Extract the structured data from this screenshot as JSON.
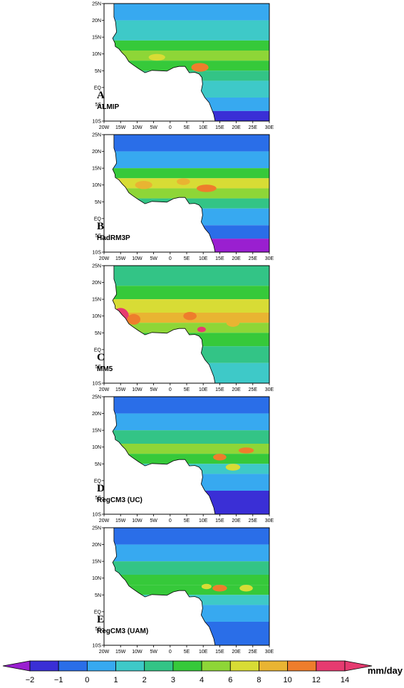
{
  "panels": [
    {
      "letter": "A",
      "name": "ALMIP"
    },
    {
      "letter": "B",
      "name": "HadRM3P"
    },
    {
      "letter": "C",
      "name": "MM5"
    },
    {
      "letter": "D",
      "name": "RegCM3 (UC)"
    },
    {
      "letter": "E",
      "name": "RegCM3 (UAM)"
    }
  ],
  "axes": {
    "lat_ticks": [
      "25N",
      "20N",
      "15N",
      "10N",
      "5N",
      "EQ",
      "5S",
      "10S"
    ],
    "lon_ticks": [
      "20W",
      "15W",
      "10W",
      "5W",
      "0",
      "5E",
      "10E",
      "15E",
      "20E",
      "25E",
      "30E"
    ],
    "lon_range": [
      -20,
      30
    ],
    "lat_range": [
      -10,
      25
    ]
  },
  "colorbar": {
    "labels": [
      "−2",
      "−1",
      "0",
      "1",
      "2",
      "3",
      "4",
      "6",
      "8",
      "10",
      "12",
      "14"
    ],
    "unit": "mm/day",
    "colors": [
      "#9a1fd0",
      "#3a2fd6",
      "#2a6ee8",
      "#37a9f0",
      "#3ec9c8",
      "#33c486",
      "#36c93a",
      "#8ed637",
      "#d8dc35",
      "#e9b432",
      "#ee7d2c",
      "#e63b70"
    ]
  }
}
